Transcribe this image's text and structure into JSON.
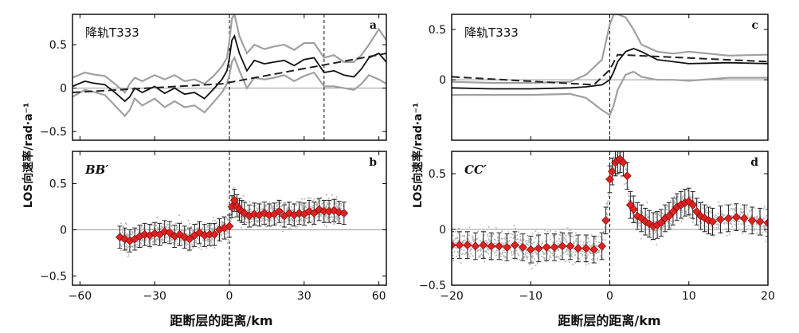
{
  "chart_data": [
    {
      "panel": "a",
      "type": "line",
      "title": "降轨T333",
      "xlim": [
        -63,
        63
      ],
      "ylim": [
        -0.6,
        0.85
      ],
      "yticks": [
        -0.5,
        0,
        0.5
      ],
      "xticks": [
        -60,
        -30,
        0,
        30,
        60
      ],
      "vlines": [
        0,
        38
      ],
      "series": [
        {
          "x": [
            -63,
            -58,
            -55,
            -50,
            -46,
            -42,
            -40,
            -38,
            -35,
            -30,
            -26,
            -22,
            -18,
            -14,
            -10,
            -6,
            -3,
            -1,
            0,
            1,
            2,
            4,
            7,
            10,
            14,
            18,
            22,
            26,
            30,
            34,
            38,
            42,
            46,
            50,
            53,
            56,
            60,
            63
          ],
          "y": [
            0.02,
            0.08,
            0.06,
            0.04,
            -0.05,
            -0.15,
            -0.1,
            0.0,
            -0.05,
            0.02,
            -0.06,
            0.0,
            -0.07,
            -0.05,
            -0.12,
            0.0,
            0.1,
            0.2,
            0.35,
            0.55,
            0.6,
            0.4,
            0.2,
            0.32,
            0.28,
            0.3,
            0.32,
            0.26,
            0.33,
            0.35,
            0.18,
            0.2,
            0.15,
            0.13,
            0.22,
            0.35,
            0.4,
            0.3
          ]
        },
        {
          "x": [
            -63,
            -58,
            -55,
            -50,
            -46,
            -42,
            -40,
            -38,
            -35,
            -30,
            -26,
            -22,
            -18,
            -14,
            -10,
            -6,
            -3,
            -1,
            0,
            1,
            2,
            4,
            7,
            10,
            14,
            18,
            22,
            26,
            30,
            34,
            38,
            42,
            46,
            50,
            53,
            56,
            60,
            63
          ],
          "y": [
            0.12,
            0.18,
            0.16,
            0.14,
            0.05,
            -0.05,
            0.05,
            0.12,
            0.08,
            0.15,
            0.1,
            0.15,
            0.08,
            0.1,
            0.05,
            0.15,
            0.25,
            0.35,
            0.55,
            0.8,
            0.85,
            0.6,
            0.4,
            0.5,
            0.45,
            0.48,
            0.5,
            0.44,
            0.52,
            0.52,
            0.35,
            0.38,
            0.3,
            0.3,
            0.38,
            0.5,
            0.68,
            0.55
          ]
        },
        {
          "x": [
            -63,
            -58,
            -55,
            -50,
            -46,
            -42,
            -40,
            -38,
            -35,
            -30,
            -26,
            -22,
            -18,
            -14,
            -10,
            -6,
            -3,
            -1,
            0,
            1,
            2,
            4,
            7,
            10,
            14,
            18,
            22,
            26,
            30,
            34,
            38,
            42,
            46,
            50,
            53,
            56,
            60,
            63
          ],
          "y": [
            -0.1,
            -0.02,
            -0.04,
            -0.08,
            -0.2,
            -0.32,
            -0.25,
            -0.12,
            -0.2,
            -0.12,
            -0.22,
            -0.15,
            -0.22,
            -0.2,
            -0.28,
            -0.15,
            -0.05,
            0.05,
            0.15,
            0.3,
            0.35,
            0.2,
            0.0,
            0.12,
            0.1,
            0.12,
            0.15,
            0.08,
            0.14,
            0.18,
            0.02,
            0.02,
            0.0,
            -0.02,
            0.05,
            0.15,
            0.1,
            0.05
          ]
        },
        {
          "x": [
            -63,
            -3,
            63
          ],
          "y": [
            -0.05,
            0.05,
            0.4
          ]
        }
      ]
    },
    {
      "panel": "b",
      "type": "scatter",
      "title": "BB′",
      "xlim": [
        -63,
        63
      ],
      "ylim": [
        -0.6,
        0.85
      ],
      "yticks": [
        -0.5,
        0,
        0.5
      ],
      "xticks": [
        -60,
        -30,
        0,
        30,
        60
      ],
      "vlines": [
        0
      ],
      "x": [
        -44,
        -42,
        -40,
        -38,
        -36,
        -34,
        -32,
        -30,
        -28,
        -26,
        -24,
        -22,
        -20,
        -18,
        -16,
        -14,
        -12,
        -10,
        -8,
        -6,
        -4,
        -2,
        0,
        1,
        2,
        3,
        4,
        5,
        6,
        8,
        10,
        12,
        14,
        16,
        18,
        20,
        22,
        24,
        26,
        28,
        30,
        32,
        34,
        36,
        38,
        40,
        42,
        44,
        46
      ],
      "y": [
        -0.08,
        -0.1,
        -0.12,
        -0.1,
        -0.07,
        -0.05,
        -0.06,
        -0.04,
        -0.05,
        -0.02,
        -0.03,
        -0.07,
        -0.05,
        -0.08,
        -0.1,
        -0.06,
        -0.03,
        -0.06,
        -0.05,
        -0.05,
        0.0,
        0.02,
        0.04,
        0.25,
        0.32,
        0.26,
        0.22,
        0.2,
        0.18,
        0.15,
        0.17,
        0.16,
        0.18,
        0.16,
        0.17,
        0.2,
        0.15,
        0.18,
        0.16,
        0.18,
        0.17,
        0.2,
        0.18,
        0.22,
        0.2,
        0.2,
        0.21,
        0.19,
        0.18
      ],
      "err": 0.12
    },
    {
      "panel": "c",
      "type": "line",
      "title": "降轨T333",
      "xlim": [
        -20,
        20
      ],
      "ylim": [
        -0.6,
        0.65
      ],
      "yticks": [
        0,
        0.5
      ],
      "xticks": [
        -20,
        -10,
        0,
        10,
        20
      ],
      "vlines": [
        0
      ],
      "series": [
        {
          "x": [
            -20,
            -15,
            -10,
            -5,
            -3,
            -1,
            0,
            0.5,
            1,
            2,
            3,
            4,
            6,
            8,
            10,
            15,
            20
          ],
          "y": [
            -0.08,
            -0.09,
            -0.09,
            -0.08,
            -0.07,
            -0.05,
            0.0,
            0.08,
            0.18,
            0.28,
            0.31,
            0.28,
            0.2,
            0.18,
            0.16,
            0.17,
            0.16
          ]
        },
        {
          "x": [
            -20,
            -15,
            -10,
            -5,
            -3,
            -1,
            0,
            0.5,
            1,
            2,
            3,
            4,
            6,
            8,
            10,
            15,
            20
          ],
          "y": [
            -0.02,
            -0.03,
            -0.03,
            -0.02,
            0.05,
            0.2,
            0.55,
            0.65,
            0.65,
            0.62,
            0.5,
            0.35,
            0.28,
            0.26,
            0.28,
            0.24,
            0.25
          ]
        },
        {
          "x": [
            -20,
            -15,
            -10,
            -5,
            -3,
            -1,
            0,
            0.5,
            1,
            2,
            3,
            4,
            6,
            8,
            10,
            15,
            20
          ],
          "y": [
            -0.15,
            -0.15,
            -0.15,
            -0.14,
            -0.18,
            -0.3,
            -0.35,
            -0.25,
            -0.1,
            0.05,
            0.08,
            0.03,
            0.0,
            0.0,
            -0.01,
            0.02,
            0.02
          ]
        },
        {
          "x": [
            -20,
            -2,
            0,
            1,
            20
          ],
          "y": [
            0.03,
            -0.05,
            0.1,
            0.25,
            0.18
          ]
        }
      ]
    },
    {
      "panel": "d",
      "type": "scatter",
      "title": "CC′",
      "xlim": [
        -20,
        20
      ],
      "ylim": [
        -0.5,
        0.7
      ],
      "yticks": [
        -0.5,
        0,
        0.5
      ],
      "xticks": [
        -20,
        -10,
        0,
        10,
        20
      ],
      "vlines": [
        0
      ],
      "x": [
        -20,
        -19,
        -18,
        -17,
        -16,
        -15,
        -14,
        -13,
        -12,
        -11,
        -10,
        -9,
        -8,
        -7,
        -6,
        -5,
        -4,
        -3,
        -2,
        -1,
        -0.5,
        0,
        0.3,
        0.7,
        1,
        1.3,
        1.7,
        2.2,
        2.6,
        3,
        3.5,
        4,
        4.5,
        5,
        5.5,
        6,
        6.5,
        7,
        7.5,
        8,
        8.5,
        9,
        9.5,
        10,
        10.5,
        11,
        11.5,
        12,
        12.5,
        13,
        14,
        15,
        16,
        17,
        18,
        19,
        20
      ],
      "y": [
        -0.14,
        -0.14,
        -0.14,
        -0.15,
        -0.14,
        -0.15,
        -0.15,
        -0.16,
        -0.14,
        -0.16,
        -0.18,
        -0.17,
        -0.16,
        -0.16,
        -0.15,
        -0.15,
        -0.17,
        -0.17,
        -0.18,
        -0.15,
        0.08,
        0.45,
        0.52,
        0.6,
        0.62,
        0.63,
        0.6,
        0.48,
        0.22,
        0.18,
        0.12,
        0.1,
        0.07,
        0.05,
        0.03,
        0.04,
        0.06,
        0.1,
        0.12,
        0.16,
        0.2,
        0.22,
        0.24,
        0.25,
        0.22,
        0.16,
        0.12,
        0.1,
        0.08,
        0.07,
        0.09,
        0.1,
        0.11,
        0.1,
        0.08,
        0.07,
        0.06
      ],
      "err": 0.12
    }
  ],
  "labels": {
    "xlabel": "距断层的距离/km",
    "ylabel_left": "LOS向速率/rad·a⁻¹",
    "ylabel_right": "LOS向速率/rad·a⁻¹"
  },
  "colors": {
    "marker": "#dd2222",
    "band": "#a0a0a0",
    "scatter": "#b5b5b5"
  }
}
